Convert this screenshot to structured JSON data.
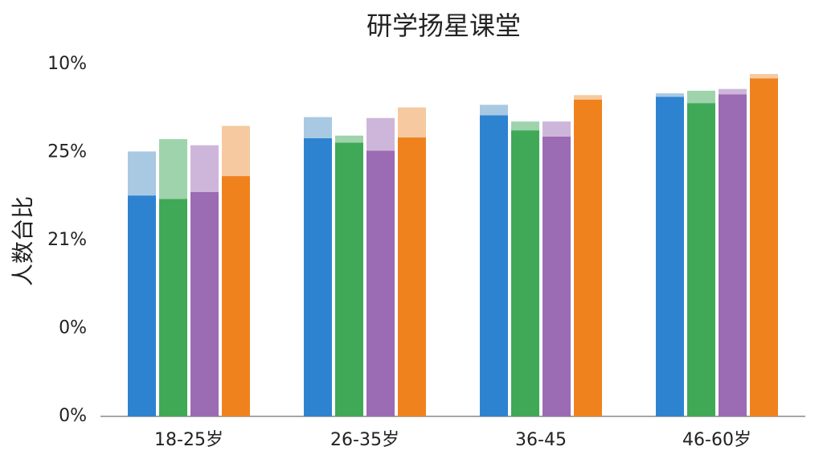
{
  "chart_data": {
    "type": "bar",
    "title": "研学扬星课堂",
    "y_label": "人数台比",
    "categories": [
      "18-25岁",
      "26-35岁",
      "36-45",
      "46-60岁"
    ],
    "series": [
      {
        "color": "#2e83d1",
        "light_color": "#a9c9e2",
        "values": [
          2.51,
          3.16,
          3.42,
          3.63
        ],
        "light_values": [
          0.5,
          0.24,
          0.12,
          0.04
        ]
      },
      {
        "color": "#3fa957",
        "light_color": "#9fd3ab",
        "values": [
          2.47,
          3.11,
          3.25,
          3.56
        ],
        "light_values": [
          0.68,
          0.08,
          0.1,
          0.14
        ]
      },
      {
        "color": "#9b6bb3",
        "light_color": "#cdb6da",
        "values": [
          2.55,
          3.02,
          3.18,
          3.66
        ],
        "light_values": [
          0.53,
          0.37,
          0.17,
          0.06
        ]
      },
      {
        "color": "#f0821e",
        "light_color": "#f6c9a0",
        "values": [
          2.73,
          3.17,
          3.6,
          3.84
        ],
        "light_values": [
          0.57,
          0.34,
          0.05,
          0.05
        ]
      }
    ],
    "ylim": [
      0,
      4
    ],
    "yticks": [
      {
        "value": 0,
        "label": "0%"
      },
      {
        "value": 1,
        "label": "0%"
      },
      {
        "value": 2,
        "label": "21%"
      },
      {
        "value": 3,
        "label": "25%"
      },
      {
        "value": 4,
        "label": "10%"
      }
    ]
  }
}
